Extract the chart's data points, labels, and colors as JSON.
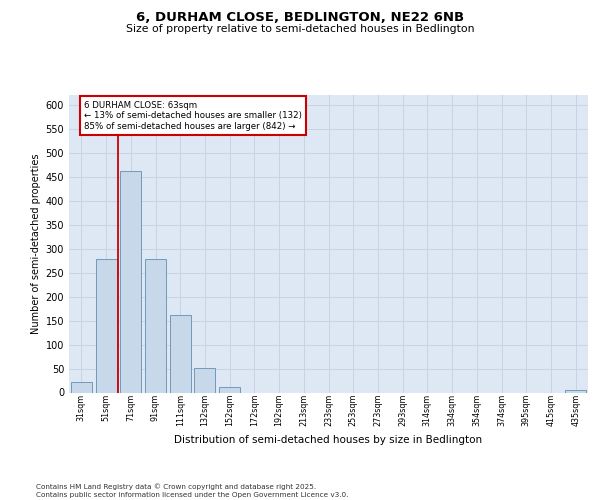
{
  "title1": "6, DURHAM CLOSE, BEDLINGTON, NE22 6NB",
  "title2": "Size of property relative to semi-detached houses in Bedlington",
  "xlabel": "Distribution of semi-detached houses by size in Bedlington",
  "ylabel": "Number of semi-detached properties",
  "categories": [
    "31sqm",
    "51sqm",
    "71sqm",
    "91sqm",
    "111sqm",
    "132sqm",
    "152sqm",
    "172sqm",
    "192sqm",
    "213sqm",
    "233sqm",
    "253sqm",
    "273sqm",
    "293sqm",
    "314sqm",
    "334sqm",
    "354sqm",
    "374sqm",
    "395sqm",
    "415sqm",
    "435sqm"
  ],
  "values": [
    21,
    278,
    461,
    278,
    162,
    52,
    11,
    0,
    0,
    0,
    0,
    0,
    0,
    0,
    0,
    0,
    0,
    0,
    0,
    0,
    5
  ],
  "bar_color": "#c8d8eb",
  "bar_edge_color": "#6090b0",
  "marker_label": "6 DURHAM CLOSE: 63sqm",
  "pct_smaller": 13,
  "pct_larger": 85,
  "count_smaller": 132,
  "count_larger": 842,
  "vline_color": "#cc0000",
  "annotation_box_color": "#cc0000",
  "grid_color": "#c8d4e4",
  "background_color": "#dde8f4",
  "ylim": [
    0,
    620
  ],
  "yticks": [
    0,
    50,
    100,
    150,
    200,
    250,
    300,
    350,
    400,
    450,
    500,
    550,
    600
  ],
  "footer": "Contains HM Land Registry data © Crown copyright and database right 2025.\nContains public sector information licensed under the Open Government Licence v3.0."
}
